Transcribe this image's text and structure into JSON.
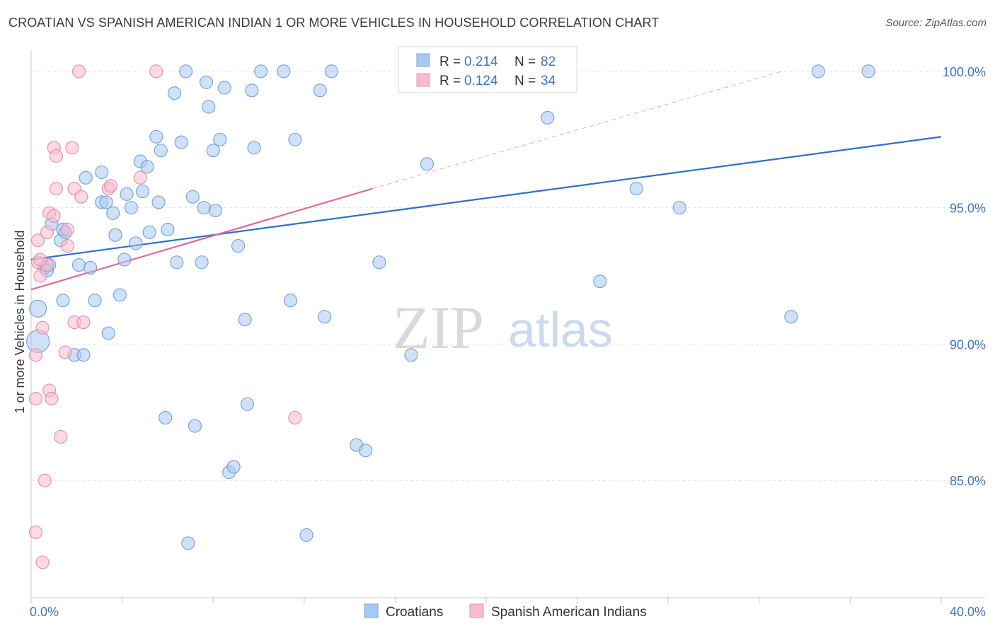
{
  "title": "CROATIAN VS SPANISH AMERICAN INDIAN 1 OR MORE VEHICLES IN HOUSEHOLD CORRELATION CHART",
  "source": "Source: ZipAtlas.com",
  "watermark": {
    "zip": "ZIP",
    "atlas": "atlas"
  },
  "legend_top": {
    "r_label": "R =",
    "n_label": "N =",
    "rows": [
      {
        "r": "0.214",
        "n": "82",
        "color": "#a8c8f0",
        "stroke": "#7aa6dd"
      },
      {
        "r": "0.124",
        "n": "34",
        "color": "#f7bccd",
        "stroke": "#ec93ad"
      }
    ]
  },
  "bottom_legend": [
    "Croatians",
    "Spanish American Indians"
  ],
  "colors": {
    "blue_fill": "#a8c8f0",
    "blue_stroke": "#6f9fd9",
    "blue_line": "#2f6fc9",
    "pink_fill": "#f7bccd",
    "pink_stroke": "#e88aa7",
    "pink_line": "#e06a94",
    "grid": "#dfe3ea",
    "axis_text": "#3f74c6"
  },
  "chart_data": {
    "type": "scatter",
    "title": "CROATIAN VS SPANISH AMERICAN INDIAN 1 OR MORE VEHICLES IN HOUSEHOLD CORRELATION CHART",
    "xlabel": "",
    "ylabel": "1 or more Vehicles in Household",
    "xlim": [
      0,
      40
    ],
    "ylim": [
      80.7,
      100.8
    ],
    "x_tick_labels": [
      {
        "value": 0,
        "label": "0.0%"
      },
      {
        "value": 40,
        "label": "40.0%"
      }
    ],
    "y_tick_labels": [
      {
        "value": 100,
        "label": "100.0%"
      },
      {
        "value": 95,
        "label": "95.0%"
      },
      {
        "value": 90,
        "label": "90.0%"
      },
      {
        "value": 85,
        "label": "85.0%"
      }
    ],
    "grid": true,
    "legend_placement": "top-center",
    "series": [
      {
        "name": "Croatians",
        "R": 0.214,
        "N": 82,
        "trend": {
          "x": [
            0,
            40
          ],
          "y": [
            93.1,
            97.6
          ]
        },
        "points": [
          [
            0.3,
            90.1,
            2
          ],
          [
            0.3,
            91.3,
            1
          ],
          [
            0.6,
            92.8,
            1
          ],
          [
            0.8,
            92.9,
            1
          ],
          [
            0.9,
            94.4,
            1
          ],
          [
            1.3,
            93.8,
            1
          ],
          [
            1.4,
            94.2,
            1
          ],
          [
            1.5,
            94.1,
            1
          ],
          [
            1.4,
            91.6,
            1
          ],
          [
            1.9,
            89.6,
            1
          ],
          [
            2.1,
            92.9,
            1
          ],
          [
            2.3,
            89.6,
            1
          ],
          [
            2.4,
            96.1,
            1
          ],
          [
            2.6,
            92.8,
            1
          ],
          [
            2.8,
            91.6,
            1
          ],
          [
            3.1,
            95.2,
            1
          ],
          [
            3.1,
            96.3,
            1
          ],
          [
            3.3,
            95.2,
            1
          ],
          [
            3.4,
            90.4,
            1
          ],
          [
            3.6,
            94.8,
            1
          ],
          [
            3.7,
            94.0,
            1
          ],
          [
            3.9,
            91.8,
            1
          ],
          [
            4.1,
            93.1,
            1
          ],
          [
            4.2,
            95.5,
            1
          ],
          [
            4.4,
            95.0,
            1
          ],
          [
            4.6,
            93.7,
            1
          ],
          [
            4.8,
            96.7,
            1
          ],
          [
            4.9,
            95.6,
            1
          ],
          [
            5.1,
            96.5,
            1
          ],
          [
            5.2,
            94.1,
            1
          ],
          [
            5.5,
            97.6,
            1
          ],
          [
            5.6,
            95.2,
            1
          ],
          [
            5.7,
            97.1,
            1
          ],
          [
            5.9,
            87.3,
            1
          ],
          [
            6.0,
            94.2,
            1
          ],
          [
            6.3,
            99.2,
            1
          ],
          [
            6.4,
            93.0,
            1
          ],
          [
            6.6,
            97.4,
            1
          ],
          [
            6.8,
            100.0,
            1
          ],
          [
            6.9,
            82.7,
            1
          ],
          [
            7.1,
            95.4,
            1
          ],
          [
            7.2,
            87.0,
            1
          ],
          [
            7.5,
            93.0,
            1
          ],
          [
            7.6,
            95.0,
            1
          ],
          [
            7.7,
            99.6,
            1
          ],
          [
            7.8,
            98.7,
            1
          ],
          [
            8.0,
            97.1,
            1
          ],
          [
            8.1,
            94.9,
            1
          ],
          [
            8.3,
            97.5,
            1
          ],
          [
            8.5,
            99.4,
            1
          ],
          [
            8.7,
            85.3,
            1
          ],
          [
            8.9,
            85.5,
            1
          ],
          [
            9.1,
            93.6,
            1
          ],
          [
            9.4,
            90.9,
            1
          ],
          [
            9.5,
            87.8,
            1
          ],
          [
            9.7,
            99.3,
            1
          ],
          [
            9.8,
            97.2,
            1
          ],
          [
            10.1,
            100.0,
            1
          ],
          [
            11.1,
            100.0,
            1
          ],
          [
            11.4,
            91.6,
            1
          ],
          [
            11.6,
            97.5,
            1
          ],
          [
            12.1,
            83.0,
            1
          ],
          [
            12.7,
            99.3,
            1
          ],
          [
            12.9,
            91.0,
            1
          ],
          [
            13.2,
            100.0,
            1
          ],
          [
            14.3,
            86.3,
            1
          ],
          [
            14.7,
            86.1,
            1
          ],
          [
            15.3,
            93.0,
            1
          ],
          [
            16.7,
            89.6,
            1
          ],
          [
            17.4,
            96.6,
            1
          ],
          [
            17.6,
            100.0,
            1
          ],
          [
            22.2,
            100.0,
            1
          ],
          [
            22.7,
            98.3,
            1
          ],
          [
            25.0,
            92.3,
            1
          ],
          [
            26.6,
            95.7,
            1
          ],
          [
            28.5,
            95.0,
            1
          ],
          [
            33.4,
            91.0,
            1
          ],
          [
            34.6,
            100.0,
            1
          ],
          [
            36.8,
            100.0,
            1
          ],
          [
            19.7,
            100.0,
            1
          ],
          [
            20.5,
            100.0,
            1
          ],
          [
            0.7,
            92.7,
            1
          ]
        ]
      },
      {
        "name": "Spanish American Indians",
        "R": 0.124,
        "N": 34,
        "trend": {
          "x": [
            0,
            15
          ],
          "y": [
            92.0,
            95.7
          ]
        },
        "trend_extension": {
          "x": [
            15,
            33
          ],
          "y": [
            95.7,
            100.0
          ]
        },
        "points": [
          [
            0.2,
            83.1,
            1
          ],
          [
            0.2,
            88.0,
            1
          ],
          [
            0.2,
            89.6,
            1
          ],
          [
            0.3,
            93.0,
            1
          ],
          [
            0.3,
            93.8,
            1
          ],
          [
            0.4,
            92.5,
            1
          ],
          [
            0.5,
            90.6,
            1
          ],
          [
            0.5,
            82.0,
            1
          ],
          [
            0.6,
            85.0,
            1
          ],
          [
            0.7,
            92.9,
            1
          ],
          [
            0.7,
            94.1,
            1
          ],
          [
            0.8,
            94.8,
            1
          ],
          [
            0.8,
            88.3,
            1
          ],
          [
            0.9,
            88.0,
            1
          ],
          [
            1.0,
            94.7,
            1
          ],
          [
            1.0,
            97.2,
            1
          ],
          [
            1.1,
            95.7,
            1
          ],
          [
            1.1,
            96.9,
            1
          ],
          [
            1.3,
            86.6,
            1
          ],
          [
            1.5,
            89.7,
            1
          ],
          [
            1.6,
            94.2,
            1
          ],
          [
            1.6,
            93.6,
            1
          ],
          [
            1.8,
            97.2,
            1
          ],
          [
            1.9,
            95.7,
            1
          ],
          [
            1.9,
            90.8,
            1
          ],
          [
            2.1,
            100.0,
            1
          ],
          [
            2.2,
            95.4,
            1
          ],
          [
            2.3,
            90.8,
            1
          ],
          [
            3.4,
            95.7,
            1
          ],
          [
            3.5,
            95.8,
            1
          ],
          [
            4.8,
            96.1,
            1
          ],
          [
            5.5,
            100.0,
            1
          ],
          [
            11.6,
            87.3,
            1
          ],
          [
            0.4,
            93.1,
            1
          ]
        ]
      }
    ]
  }
}
